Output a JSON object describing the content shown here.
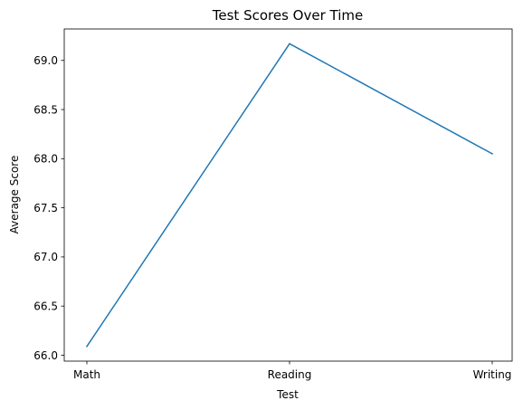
{
  "chart_data": {
    "type": "line",
    "title": "Test Scores Over Time",
    "xlabel": "Test",
    "ylabel": "Average Score",
    "categories": [
      "Math",
      "Reading",
      "Writing"
    ],
    "series": [
      {
        "values": [
          66.09,
          69.17,
          68.05
        ],
        "color": "#1f77b4"
      }
    ],
    "ylim": [
      65.94,
      69.32
    ],
    "yticks": [
      66.0,
      66.5,
      67.0,
      67.5,
      68.0,
      68.5,
      69.0
    ],
    "ytick_labels": [
      "66.0",
      "66.5",
      "67.0",
      "67.5",
      "68.0",
      "68.5",
      "69.0"
    ],
    "grid": false,
    "legend": "none"
  }
}
